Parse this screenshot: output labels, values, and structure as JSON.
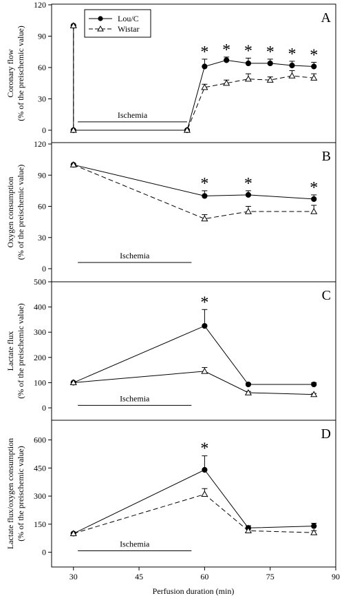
{
  "colors": {
    "axis": "#000000",
    "lou": "#000000",
    "wistar_fill": "#ffffff"
  },
  "x_axis": {
    "label": "Perfusion duration (min)",
    "ticks": [
      30,
      45,
      60,
      75,
      90
    ],
    "range": [
      25,
      90
    ]
  },
  "chart_data": [
    {
      "type": "line",
      "panel_letter": "A",
      "ylabel_line1": "Coronary flow",
      "ylabel_line2": "(% of the preischemic value)",
      "ylim": [
        0,
        120
      ],
      "yticks": [
        0,
        30,
        60,
        90,
        120
      ],
      "ischemia_label": "Ischemia",
      "ischemia_x": [
        31,
        56
      ],
      "ischemia_y": 8,
      "legend": {
        "placement": "top-left",
        "entries": [
          "Lou/C",
          "Wistar"
        ]
      },
      "series": [
        {
          "name": "Lou/C",
          "style": "solid",
          "marker": "filled-circle",
          "x": [
            30,
            30,
            56,
            60,
            65,
            70,
            75,
            80,
            85
          ],
          "y": [
            100,
            0,
            0,
            61,
            67,
            64,
            64,
            62,
            61
          ],
          "err": [
            0,
            0,
            0,
            7,
            3,
            5,
            4,
            4,
            4
          ]
        },
        {
          "name": "Wistar",
          "style": "dashed",
          "marker": "open-triangle",
          "x": [
            30,
            30,
            56,
            60,
            65,
            70,
            75,
            80,
            85
          ],
          "y": [
            100,
            0,
            0,
            41,
            45,
            49,
            48,
            52,
            50
          ],
          "err": [
            0,
            0,
            0,
            3,
            3,
            5,
            3,
            5,
            4
          ]
        }
      ],
      "asterisks_x": [
        60,
        65,
        70,
        75,
        80,
        85
      ],
      "asterisk_label": "*"
    },
    {
      "type": "line",
      "panel_letter": "B",
      "ylabel_line1": "Oxygen consumption",
      "ylabel_line2": "(% of the preischemic value)",
      "ylim": [
        0,
        120
      ],
      "yticks": [
        0,
        30,
        60,
        90,
        120
      ],
      "ischemia_label": "Ischemia",
      "ischemia_x": [
        31,
        57
      ],
      "ischemia_y": 6,
      "series": [
        {
          "name": "Lou/C",
          "style": "solid",
          "marker": "filled-circle",
          "x": [
            30,
            60,
            70,
            85
          ],
          "y": [
            100,
            70,
            71,
            67
          ],
          "err": [
            0,
            5,
            4,
            4
          ]
        },
        {
          "name": "Wistar",
          "style": "dashed",
          "marker": "open-triangle",
          "x": [
            30,
            60,
            70,
            85
          ],
          "y": [
            100,
            48,
            55,
            55
          ],
          "err": [
            0,
            4,
            5,
            6
          ]
        }
      ],
      "asterisks_x": [
        60,
        70,
        85
      ],
      "asterisk_label": "*"
    },
    {
      "type": "line",
      "panel_letter": "C",
      "ylabel_line1": "Lactate flux",
      "ylabel_line2": "(% of the preischemic value)",
      "ylim": [
        0,
        500
      ],
      "yticks": [
        0,
        100,
        200,
        300,
        400,
        500
      ],
      "ischemia_label": "Ischemia",
      "ischemia_x": [
        31,
        57
      ],
      "ischemia_y": 10,
      "series": [
        {
          "name": "Lou/C",
          "style": "solid",
          "marker": "filled-circle",
          "x": [
            30,
            60,
            70,
            85
          ],
          "y": [
            100,
            325,
            93,
            93
          ],
          "err": [
            0,
            65,
            5,
            7
          ]
        },
        {
          "name": "Wistar",
          "style": "solid",
          "marker": "open-triangle",
          "x": [
            30,
            60,
            70,
            85
          ],
          "y": [
            100,
            145,
            60,
            53
          ],
          "err": [
            0,
            15,
            5,
            4
          ]
        }
      ],
      "asterisks_x": [
        60
      ],
      "asterisk_label": "*"
    },
    {
      "type": "line",
      "panel_letter": "D",
      "ylabel_line1": "Lactate flux/oxygen consumption",
      "ylabel_line2": "(% of the preischemic value)",
      "ylim": [
        -75,
        705
      ],
      "yticks": [
        0,
        150,
        300,
        450,
        600
      ],
      "ischemia_label": "Ischemia",
      "ischemia_x": [
        31,
        57
      ],
      "ischemia_y": 8,
      "series": [
        {
          "name": "Lou/C",
          "style": "solid",
          "marker": "filled-circle",
          "x": [
            30,
            60,
            70,
            85
          ],
          "y": [
            100,
            440,
            130,
            140
          ],
          "err": [
            0,
            75,
            12,
            15
          ]
        },
        {
          "name": "Wistar",
          "style": "dashed",
          "marker": "open-triangle",
          "x": [
            30,
            60,
            70,
            85
          ],
          "y": [
            100,
            310,
            115,
            105
          ],
          "err": [
            0,
            30,
            8,
            10
          ]
        }
      ],
      "asterisks_x": [
        60
      ],
      "asterisk_label": "*"
    }
  ]
}
